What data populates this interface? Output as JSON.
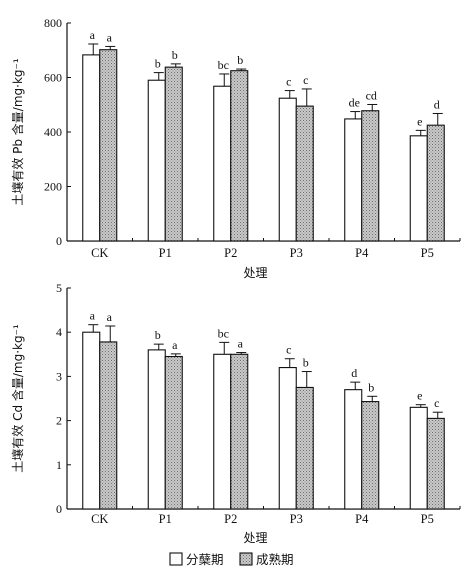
{
  "chart_data": [
    {
      "type": "bar",
      "categories": [
        "CK",
        "P1",
        "P2",
        "P3",
        "P4",
        "P5"
      ],
      "ylabel": "土壤有效 Pb 含量/mg·kg⁻¹",
      "xlabel": "处理",
      "ylim": [
        0,
        800
      ],
      "yticks": [
        "0",
        "200",
        "400",
        "600",
        "800"
      ],
      "series": [
        {
          "name": "分蘖期",
          "values": [
            683,
            590,
            568,
            524,
            448,
            386
          ],
          "errors": [
            40,
            28,
            45,
            28,
            27,
            20
          ],
          "letters": [
            "a",
            "b",
            "bc",
            "c",
            "de",
            "e"
          ]
        },
        {
          "name": "成熟期",
          "values": [
            702,
            638,
            625,
            495,
            478,
            425
          ],
          "errors": [
            12,
            12,
            6,
            63,
            23,
            43
          ],
          "letters": [
            "a",
            "b",
            "b",
            "c",
            "cd",
            "d"
          ]
        }
      ]
    },
    {
      "type": "bar",
      "categories": [
        "CK",
        "P1",
        "P2",
        "P3",
        "P4",
        "P5"
      ],
      "ylabel": "土壤有效 Cd 含量/mg·kg⁻¹",
      "xlabel": "处理",
      "ylim": [
        0,
        5
      ],
      "yticks": [
        "0",
        "1",
        "2",
        "3",
        "4",
        "5"
      ],
      "series": [
        {
          "name": "分蘖期",
          "values": [
            4.0,
            3.6,
            3.5,
            3.2,
            2.7,
            2.3
          ],
          "errors": [
            0.17,
            0.13,
            0.27,
            0.2,
            0.17,
            0.06
          ],
          "letters": [
            "a",
            "b",
            "bc",
            "c",
            "d",
            "e"
          ]
        },
        {
          "name": "成熟期",
          "values": [
            3.78,
            3.45,
            3.5,
            2.75,
            2.43,
            2.05
          ],
          "errors": [
            0.36,
            0.06,
            0.04,
            0.36,
            0.12,
            0.14
          ],
          "letters": [
            "a",
            "a",
            "a",
            "b",
            "b",
            "c"
          ]
        }
      ]
    }
  ],
  "legend": [
    {
      "label": "分蘖期",
      "style": "white"
    },
    {
      "label": "成熟期",
      "style": "hatched"
    }
  ]
}
